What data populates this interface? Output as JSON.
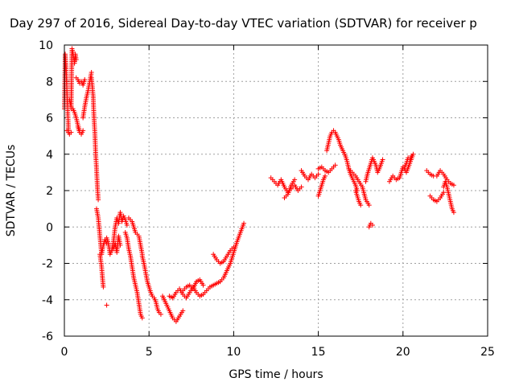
{
  "chart_data": {
    "type": "scatter",
    "title": "Day 297 of 2016, Sidereal Day-to-day VTEC variation (SDTVAR) for receiver p",
    "xlabel": "GPS time / hours",
    "ylabel": "SDTVAR / TECUs",
    "xlim": [
      0,
      25
    ],
    "ylim": [
      -6,
      10
    ],
    "xticks": [
      "0",
      "5",
      "10",
      "15",
      "20",
      "25"
    ],
    "yticks": [
      "-6",
      "-4",
      "-2",
      "0",
      "2",
      "4",
      "6",
      "8",
      "10"
    ],
    "grid": true,
    "marker": "+",
    "color": "#ff0000",
    "segments": [
      {
        "x": [
          0.0,
          0.05,
          0.1,
          0.15,
          0.2,
          0.25
        ],
        "y": [
          6.5,
          9.5,
          8.8,
          7.5,
          6.3,
          5.2
        ]
      },
      {
        "x": [
          0.15,
          0.25,
          0.3,
          0.4
        ],
        "y": [
          5.3,
          5.2,
          5.1,
          5.2
        ]
      },
      {
        "x": [
          0.4,
          0.45,
          0.5,
          0.55,
          0.6,
          0.65,
          0.7
        ],
        "y": [
          6.5,
          9.8,
          9.6,
          9.3,
          9.0,
          9.5,
          9.2
        ]
      },
      {
        "x": [
          0.3,
          0.4,
          0.5,
          0.6,
          0.7,
          0.8,
          0.9
        ],
        "y": [
          7.0,
          6.6,
          6.5,
          6.3,
          6.0,
          5.6,
          5.3
        ]
      },
      {
        "x": [
          0.7,
          0.8,
          0.9,
          1.0,
          1.1,
          1.2
        ],
        "y": [
          8.2,
          8.1,
          7.9,
          8.0,
          7.8,
          8.1
        ]
      },
      {
        "x": [
          0.8,
          0.9,
          1.0,
          1.1
        ],
        "y": [
          5.5,
          5.2,
          5.1,
          5.3
        ]
      },
      {
        "x": [
          1.1,
          1.2,
          1.3,
          1.4,
          1.5,
          1.6
        ],
        "y": [
          6.0,
          6.6,
          7.1,
          7.5,
          8.0,
          8.5
        ]
      },
      {
        "x": [
          1.6,
          1.7,
          1.75,
          1.8,
          1.85,
          1.9,
          1.95,
          2.0
        ],
        "y": [
          8.2,
          7.2,
          6.0,
          5.2,
          4.0,
          3.2,
          2.2,
          1.5
        ]
      },
      {
        "x": [
          1.9,
          2.0,
          2.1,
          2.2,
          2.3,
          2.4,
          2.5
        ],
        "y": [
          1.0,
          0.5,
          -0.5,
          -1.5,
          -1.0,
          -0.7,
          -0.9
        ]
      },
      {
        "x": [
          2.1,
          2.2,
          2.25,
          2.3
        ],
        "y": [
          -1.5,
          -2.2,
          -2.8,
          -3.3
        ]
      },
      {
        "x": [
          2.5
        ],
        "y": [
          -4.3
        ]
      },
      {
        "x": [
          2.5,
          2.6,
          2.7,
          2.8,
          2.9,
          3.0,
          3.1,
          3.2,
          3.3,
          3.4,
          3.5,
          3.6,
          3.7
        ],
        "y": [
          -0.6,
          -0.9,
          -1.5,
          -1.3,
          -0.8,
          0.0,
          0.5,
          0.2,
          0.8,
          0.3,
          0.6,
          0.4,
          0.1
        ]
      },
      {
        "x": [
          2.9,
          3.0,
          3.1,
          3.2,
          3.3
        ],
        "y": [
          -1.2,
          -0.9,
          -1.4,
          -0.5,
          -1.0
        ]
      },
      {
        "x": [
          3.6,
          3.7,
          3.8,
          3.9,
          4.0,
          4.1,
          4.2,
          4.3,
          4.4,
          4.5,
          4.6
        ],
        "y": [
          -0.3,
          -0.6,
          -1.2,
          -1.6,
          -2.2,
          -2.8,
          -3.2,
          -3.6,
          -4.2,
          -4.8,
          -5.0
        ]
      },
      {
        "x": [
          3.8,
          4.0,
          4.2,
          4.4,
          4.6
        ],
        "y": [
          0.5,
          0.3,
          -0.3,
          -0.5,
          -1.5
        ]
      },
      {
        "x": [
          4.6,
          4.7,
          4.8,
          4.9,
          5.0,
          5.1,
          5.2,
          5.3,
          5.4,
          5.5,
          5.6,
          5.7
        ],
        "y": [
          -1.6,
          -2.0,
          -2.5,
          -3.0,
          -3.3,
          -3.6,
          -3.8,
          -3.9,
          -4.1,
          -4.5,
          -4.7,
          -4.8
        ]
      },
      {
        "x": [
          5.8,
          6.0,
          6.2,
          6.4,
          6.6,
          6.8,
          7.0
        ],
        "y": [
          -3.8,
          -4.2,
          -4.6,
          -5.0,
          -5.2,
          -4.9,
          -4.6
        ]
      },
      {
        "x": [
          6.2,
          6.4,
          6.6,
          6.8,
          7.0,
          7.2,
          7.4,
          7.6,
          7.8,
          8.0,
          8.2,
          8.4,
          8.6,
          8.8,
          9.0,
          9.2
        ],
        "y": [
          -3.8,
          -3.9,
          -3.6,
          -3.4,
          -3.7,
          -3.9,
          -3.6,
          -3.3,
          -3.6,
          -3.8,
          -3.7,
          -3.5,
          -3.3,
          -3.2,
          -3.1,
          -3.0
        ]
      },
      {
        "x": [
          7.0,
          7.2,
          7.4,
          7.6,
          7.8,
          8.0,
          8.2
        ],
        "y": [
          -3.5,
          -3.3,
          -3.2,
          -3.4,
          -3.0,
          -2.9,
          -3.2
        ]
      },
      {
        "x": [
          8.8,
          9.0,
          9.2,
          9.4,
          9.6,
          9.8,
          10.0
        ],
        "y": [
          -1.5,
          -1.8,
          -2.0,
          -1.9,
          -1.6,
          -1.3,
          -1.1
        ]
      },
      {
        "x": [
          9.2,
          9.4,
          9.6,
          9.8,
          10.0,
          10.2,
          10.4,
          10.6
        ],
        "y": [
          -3.0,
          -2.8,
          -2.4,
          -2.0,
          -1.4,
          -0.8,
          -0.3,
          0.2
        ]
      },
      {
        "x": [
          12.2,
          12.4,
          12.6,
          12.8,
          13.0,
          13.2,
          13.4,
          13.6,
          13.8,
          14.0
        ],
        "y": [
          2.7,
          2.5,
          2.3,
          2.6,
          2.2,
          1.9,
          2.1,
          2.3,
          2.0,
          2.2
        ]
      },
      {
        "x": [
          13.0,
          13.2,
          13.4,
          13.6
        ],
        "y": [
          1.6,
          1.8,
          2.3,
          2.6
        ]
      },
      {
        "x": [
          14.0,
          14.2,
          14.4,
          14.6,
          14.8,
          15.0
        ],
        "y": [
          3.1,
          2.8,
          2.6,
          2.9,
          2.7,
          2.9
        ]
      },
      {
        "x": [
          15.0,
          15.1,
          15.2,
          15.3,
          15.4
        ],
        "y": [
          1.7,
          2.0,
          2.3,
          2.6,
          2.8
        ]
      },
      {
        "x": [
          15.0,
          15.2,
          15.4,
          15.6,
          15.8,
          16.0
        ],
        "y": [
          3.2,
          3.3,
          3.1,
          3.0,
          3.2,
          3.4
        ]
      },
      {
        "x": [
          15.5,
          15.6,
          15.7,
          15.8,
          15.9,
          16.0,
          16.1,
          16.2,
          16.3,
          16.4,
          16.5,
          16.6,
          16.7,
          16.8,
          16.9,
          17.0,
          17.1,
          17.2,
          17.3
        ],
        "y": [
          4.2,
          4.6,
          5.0,
          5.2,
          5.3,
          5.2,
          5.0,
          4.8,
          4.5,
          4.3,
          4.1,
          3.9,
          3.6,
          3.2,
          2.9,
          2.7,
          2.5,
          2.3,
          2.0
        ]
      },
      {
        "x": [
          16.8,
          17.0,
          17.2,
          17.4,
          17.6,
          17.8,
          18.0
        ],
        "y": [
          3.2,
          3.0,
          2.8,
          2.5,
          2.2,
          1.5,
          1.2
        ]
      },
      {
        "x": [
          17.2,
          17.3,
          17.4,
          17.5
        ],
        "y": [
          2.0,
          1.7,
          1.4,
          1.2
        ]
      },
      {
        "x": [
          17.8,
          17.9,
          18.0,
          18.1,
          18.2,
          18.3,
          18.4,
          18.5,
          18.6,
          18.8
        ],
        "y": [
          2.5,
          2.9,
          3.2,
          3.5,
          3.8,
          3.6,
          3.4,
          3.0,
          3.2,
          3.7
        ]
      },
      {
        "x": [
          18.0,
          18.1,
          18.2
        ],
        "y": [
          0.0,
          0.2,
          0.1
        ]
      },
      {
        "x": [
          19.2,
          19.4,
          19.6,
          19.8,
          20.0,
          20.2,
          20.4,
          20.6
        ],
        "y": [
          2.5,
          2.8,
          2.6,
          2.7,
          3.3,
          3.0,
          3.5,
          4.0
        ]
      },
      {
        "x": [
          20.1,
          20.2,
          20.3,
          20.4,
          20.5
        ],
        "y": [
          3.3,
          3.5,
          3.8,
          3.7,
          3.9
        ]
      },
      {
        "x": [
          21.4,
          21.6,
          21.8,
          22.0,
          22.2,
          22.4,
          22.6,
          22.8,
          23.0
        ],
        "y": [
          3.1,
          2.9,
          2.8,
          2.8,
          3.1,
          2.9,
          2.6,
          2.4,
          2.3
        ]
      },
      {
        "x": [
          21.6,
          21.8,
          22.0,
          22.2,
          22.4
        ],
        "y": [
          1.7,
          1.5,
          1.4,
          1.6,
          1.9
        ]
      },
      {
        "x": [
          22.4,
          22.5,
          22.6,
          22.7,
          22.8,
          22.9,
          23.0
        ],
        "y": [
          2.2,
          2.5,
          2.2,
          1.8,
          1.4,
          1.0,
          0.8
        ]
      }
    ]
  }
}
